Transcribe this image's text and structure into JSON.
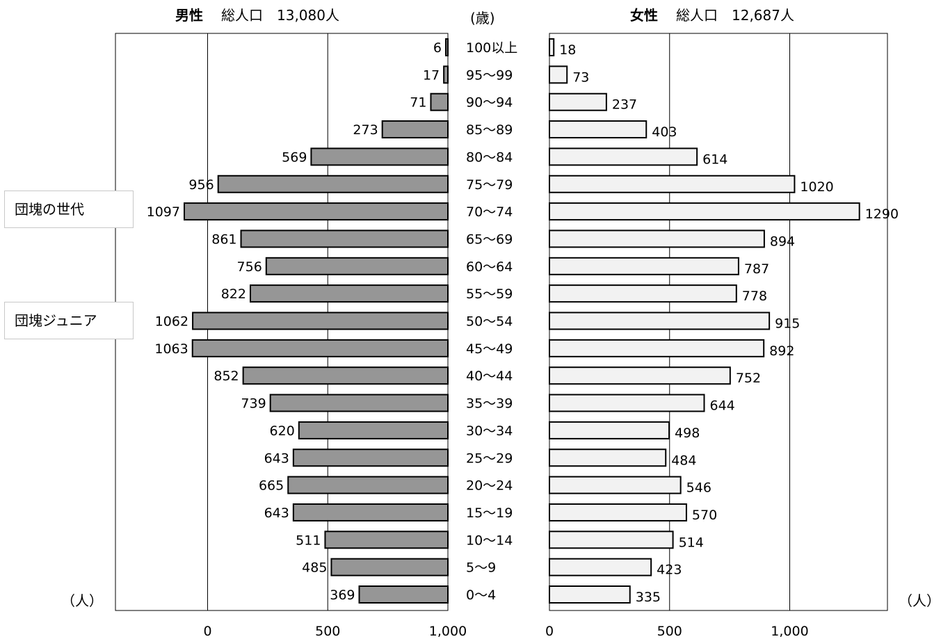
{
  "header": {
    "male_label": "男性",
    "male_total": "総人口　13,080人",
    "female_label": "女性",
    "female_total": "総人口　12,687人",
    "age_unit": "(歳)"
  },
  "annotations": {
    "dankai": "団塊の世代",
    "dankai_junior": "団塊ジュニア"
  },
  "units": {
    "left": "（人）",
    "right": "（人）"
  },
  "colors": {
    "male_bar": "#969696",
    "female_bar": "#f2f2f2",
    "bar_stroke": "#000000"
  },
  "chart_data": {
    "type": "bar",
    "orientation": "horizontal-population-pyramid",
    "categories": [
      "100以上",
      "95～99",
      "90～94",
      "85～89",
      "80～84",
      "75～79",
      "70～74",
      "65～69",
      "60～64",
      "55～59",
      "50～54",
      "45～49",
      "40～44",
      "35～39",
      "30～34",
      "25～29",
      "20～24",
      "15～19",
      "10～14",
      "5～9",
      "0～4"
    ],
    "series": [
      {
        "name": "男性",
        "values": [
          6,
          17,
          71,
          273,
          569,
          956,
          1097,
          861,
          756,
          822,
          1062,
          1063,
          852,
          739,
          620,
          643,
          665,
          643,
          511,
          485,
          369
        ]
      },
      {
        "name": "女性",
        "values": [
          18,
          73,
          237,
          403,
          614,
          1020,
          1290,
          894,
          787,
          778,
          915,
          892,
          752,
          644,
          498,
          484,
          546,
          570,
          514,
          423,
          335
        ]
      }
    ],
    "x_ticks_male": [
      "1,000",
      "500",
      "0"
    ],
    "x_ticks_female": [
      "0",
      "500",
      "1,000"
    ],
    "x_tick_values": [
      0,
      500,
      1000
    ],
    "xlim": [
      0,
      1400
    ],
    "grid": true
  }
}
